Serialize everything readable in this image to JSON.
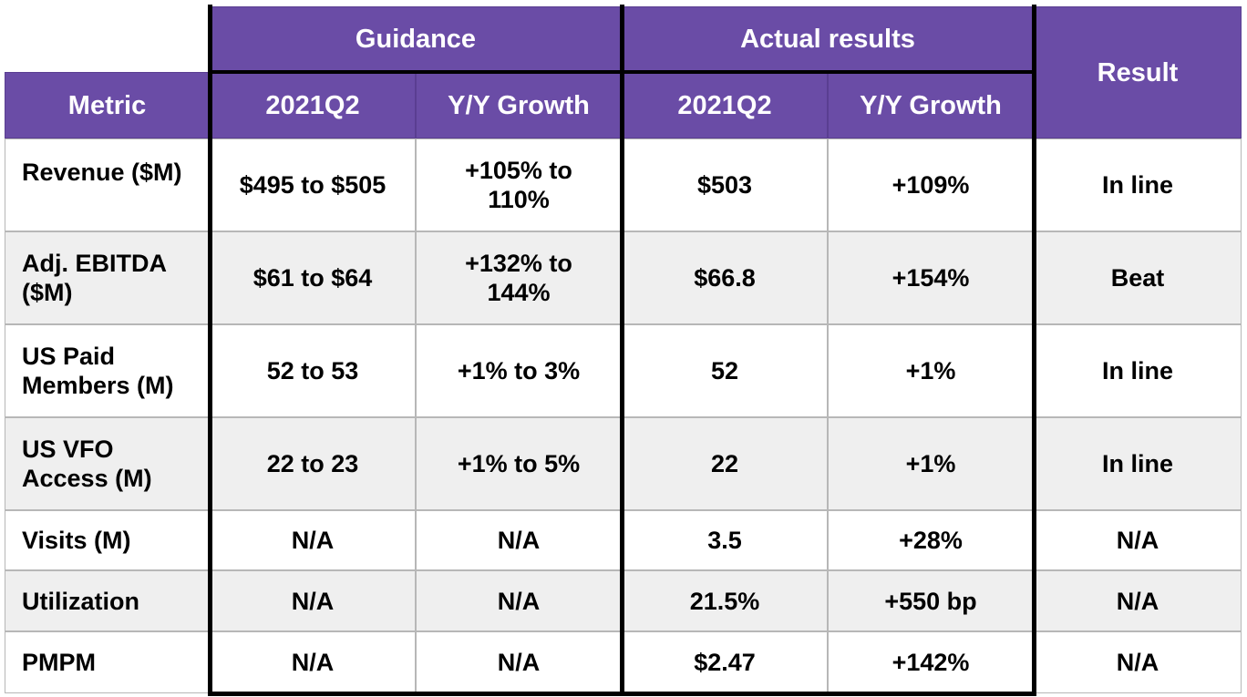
{
  "colors": {
    "header_bg": "#6a4ca6",
    "header_text": "#ffffff",
    "row_alt": "#efefef",
    "row": "#ffffff"
  },
  "chart_data": {
    "type": "table",
    "group_headers": {
      "guidance": "Guidance",
      "actual": "Actual results",
      "result": "Result"
    },
    "columns": [
      "Metric",
      "2021Q2",
      "Y/Y Growth",
      "2021Q2",
      "Y/Y Growth"
    ],
    "rows": [
      {
        "metric": "Revenue ($M)",
        "g_q": "$495 to $505",
        "g_yy": "+105% to 110%",
        "a_q": "$503",
        "a_yy": "+109%",
        "result": "In line"
      },
      {
        "metric": "Adj. EBITDA ($M)",
        "g_q": "$61 to $64",
        "g_yy": "+132% to 144%",
        "a_q": "$66.8",
        "a_yy": "+154%",
        "result": "Beat"
      },
      {
        "metric": "US Paid Members (M)",
        "g_q": "52 to 53",
        "g_yy": "+1% to 3%",
        "a_q": "52",
        "a_yy": "+1%",
        "result": "In line"
      },
      {
        "metric": "US VFO Access (M)",
        "g_q": "22 to 23",
        "g_yy": "+1% to 5%",
        "a_q": "22",
        "a_yy": "+1%",
        "result": "In line"
      },
      {
        "metric": "Visits (M)",
        "g_q": "N/A",
        "g_yy": "N/A",
        "a_q": "3.5",
        "a_yy": "+28%",
        "result": "N/A"
      },
      {
        "metric": "Utilization",
        "g_q": "N/A",
        "g_yy": "N/A",
        "a_q": "21.5%",
        "a_yy": "+550 bp",
        "result": "N/A"
      },
      {
        "metric": "PMPM",
        "g_q": "N/A",
        "g_yy": "N/A",
        "a_q": "$2.47",
        "a_yy": "+142%",
        "result": "N/A"
      }
    ]
  }
}
